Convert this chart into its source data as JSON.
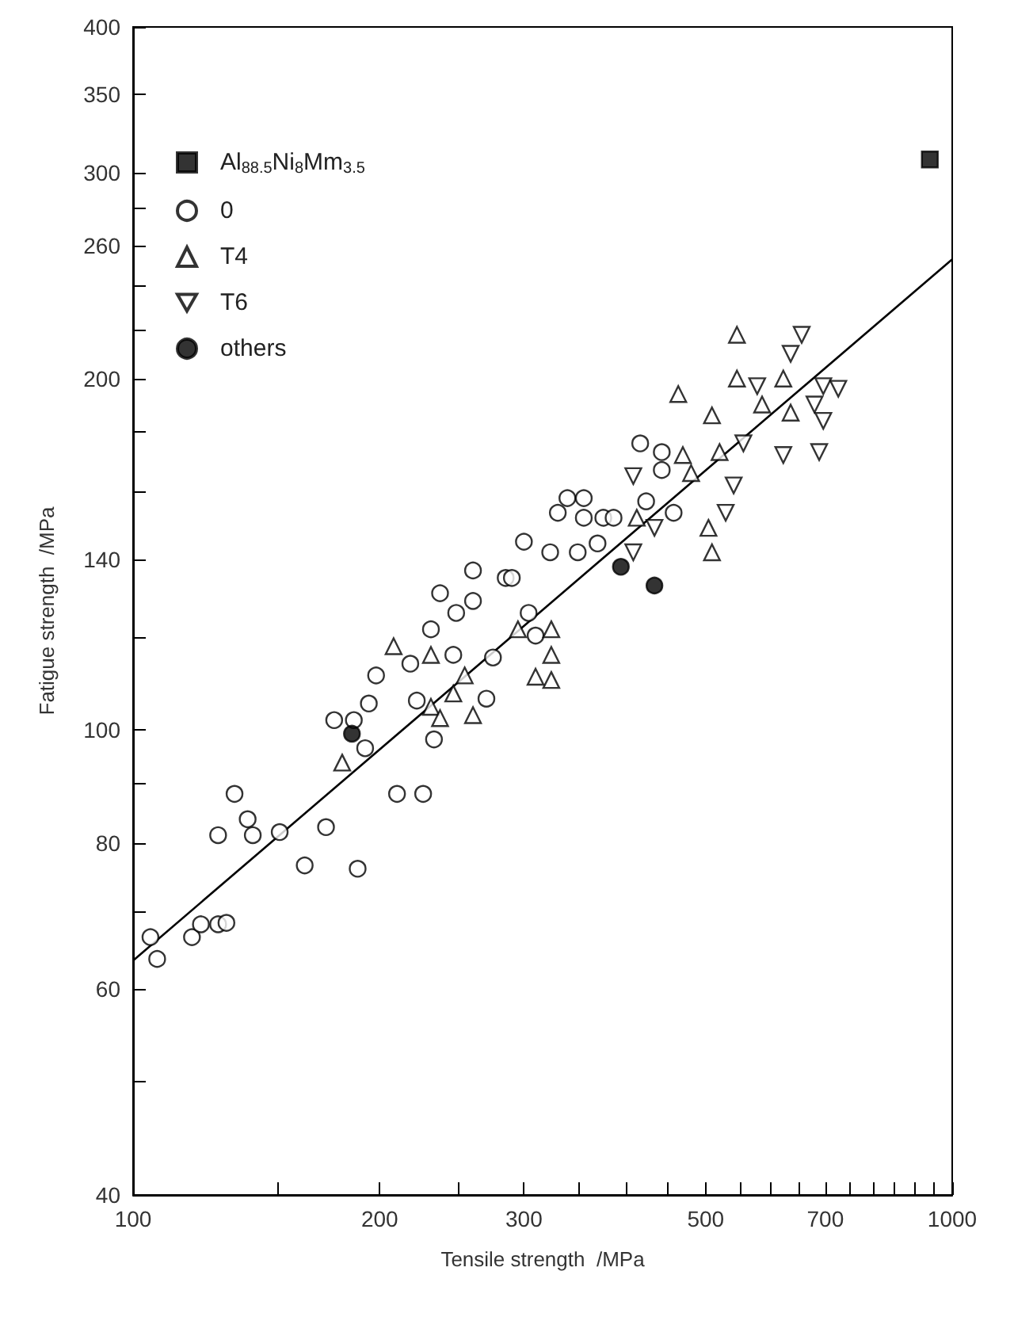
{
  "chart_data": {
    "type": "scatter",
    "xlabel": "Tensile strength  /MPa",
    "ylabel": "Fatigue strength  /MPa",
    "log": "xy",
    "legend": "top left",
    "xlim": [
      100,
      1000
    ],
    "xticks": [
      100,
      {
        "value": 150,
        "label": null
      },
      200,
      {
        "value": 250,
        "label": null
      },
      300,
      {
        "value": 350,
        "label": null
      },
      {
        "value": 400,
        "label": null
      },
      {
        "value": 450,
        "label": null
      },
      500,
      {
        "value": 550,
        "label": null
      },
      {
        "value": 600,
        "label": null
      },
      {
        "value": 650,
        "label": null
      },
      700,
      {
        "value": 750,
        "label": null
      },
      {
        "value": 800,
        "label": null
      },
      {
        "value": 850,
        "label": null
      },
      {
        "value": 900,
        "label": null
      },
      {
        "value": 950,
        "label": null
      },
      1000
    ],
    "ylim": [
      40,
      400
    ],
    "yticks": [
      40,
      {
        "value": 50,
        "label": null
      },
      60,
      {
        "value": 70,
        "label": null
      },
      80,
      {
        "value": 90,
        "label": null
      },
      100,
      {
        "value": 120,
        "label": null
      },
      140,
      {
        "value": 160,
        "label": null
      },
      {
        "value": 180,
        "label": null
      },
      200,
      {
        "value": 220,
        "label": null
      },
      {
        "value": 240,
        "label": null
      },
      260,
      {
        "value": 280,
        "label": null
      },
      300,
      350,
      400
    ],
    "series": [
      {
        "name": "Al$_{88.5}$Ni$_{8}$Mm$_{3.5}$",
        "color": "#000000",
        "marker": "square",
        "x": [
          939
        ],
        "values": [
          308
        ]
      },
      {
        "name": "0",
        "color": "#000000",
        "marker": "circle-open",
        "x": [
          105,
          107,
          118,
          121,
          127,
          130,
          127,
          133,
          138,
          140,
          151,
          162,
          172,
          188,
          176,
          186,
          192,
          194,
          198,
          210,
          226,
          218,
          222,
          233,
          246,
          270,
          275,
          260,
          285,
          290,
          237,
          260,
          248,
          231,
          304,
          310,
          300,
          323,
          349,
          369,
          339,
          355,
          330,
          355,
          375,
          386,
          416,
          442,
          442,
          423,
          457
        ],
        "values": [
          66.5,
          63.7,
          66.5,
          68.2,
          68.2,
          68.4,
          81.3,
          88.2,
          83.9,
          81.3,
          81.8,
          76.6,
          82.6,
          76.1,
          102,
          102,
          96.5,
          105.4,
          111.4,
          88.2,
          88.2,
          114,
          106,
          98.2,
          116,
          106.4,
          115.4,
          137,
          135,
          135,
          131,
          129,
          126,
          122,
          126,
          120.5,
          145,
          142,
          142,
          144.5,
          158,
          158,
          153.5,
          152,
          152,
          152,
          176,
          173,
          167,
          157,
          153.5
        ]
      },
      {
        "name": "T4",
        "color": "#000000",
        "marker": "triangle-open",
        "x": [
          180,
          208,
          231,
          231,
          237,
          260,
          246,
          254,
          295,
          324,
          324,
          310,
          324,
          412,
          504,
          509,
          480,
          469,
          520,
          509,
          463,
          546,
          546,
          622,
          586,
          635
        ],
        "values": [
          93.8,
          118,
          116,
          104.7,
          102.4,
          103,
          107.5,
          111.4,
          122,
          122,
          116,
          111.1,
          110.4,
          152,
          149,
          142,
          166,
          172,
          173,
          186,
          194,
          218,
          200,
          200,
          190,
          187
        ]
      },
      {
        "name": "T6",
        "color": "#000000",
        "marker": "triangle-down-open",
        "x": [
          655,
          635,
          578,
          696,
          726,
          679,
          696,
          556,
          622,
          688,
          408,
          541,
          529,
          433,
          408
        ],
        "values": [
          218,
          210,
          197,
          197,
          196,
          190,
          184,
          176,
          172,
          173,
          165,
          162,
          153.5,
          149,
          142
        ]
      },
      {
        "name": "others",
        "color": "#000000",
        "marker": "circle",
        "x": [
          185,
          394,
          433
        ],
        "values": [
          99.3,
          138,
          133
        ]
      },
      {
        "type": "line",
        "color": "#000000",
        "marker": "none",
        "x": [
          100,
          1000
        ],
        "values": [
          63.5,
          253
        ]
      }
    ]
  }
}
